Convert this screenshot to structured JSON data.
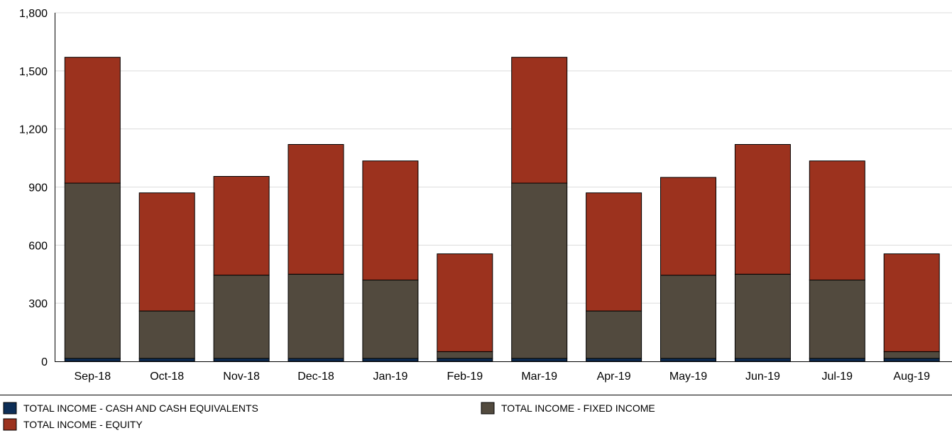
{
  "chart_data": {
    "type": "bar",
    "stacked": true,
    "categories": [
      "Sep-18",
      "Oct-18",
      "Nov-18",
      "Dec-18",
      "Jan-19",
      "Feb-19",
      "Mar-19",
      "Apr-19",
      "May-19",
      "Jun-19",
      "Jul-19",
      "Aug-19"
    ],
    "series": [
      {
        "name": "TOTAL INCOME - CASH AND CASH EQUIVALENTS",
        "color": "#0d2e57",
        "values": [
          15,
          15,
          15,
          15,
          15,
          15,
          15,
          15,
          15,
          15,
          15,
          15
        ]
      },
      {
        "name": "TOTAL INCOME - FIXED INCOME",
        "color": "#524a3e",
        "values": [
          905,
          245,
          430,
          435,
          405,
          35,
          905,
          245,
          430,
          435,
          405,
          35
        ]
      },
      {
        "name": "TOTAL INCOME - EQUITY",
        "color": "#9c321e",
        "values": [
          650,
          610,
          510,
          670,
          615,
          505,
          650,
          610,
          505,
          670,
          615,
          505
        ]
      }
    ],
    "yticks": [
      "0",
      "300",
      "600",
      "900",
      "1,200",
      "1,500",
      "1,800"
    ],
    "ylim": [
      0,
      1800
    ],
    "grid": true,
    "legend_position": "bottom"
  }
}
